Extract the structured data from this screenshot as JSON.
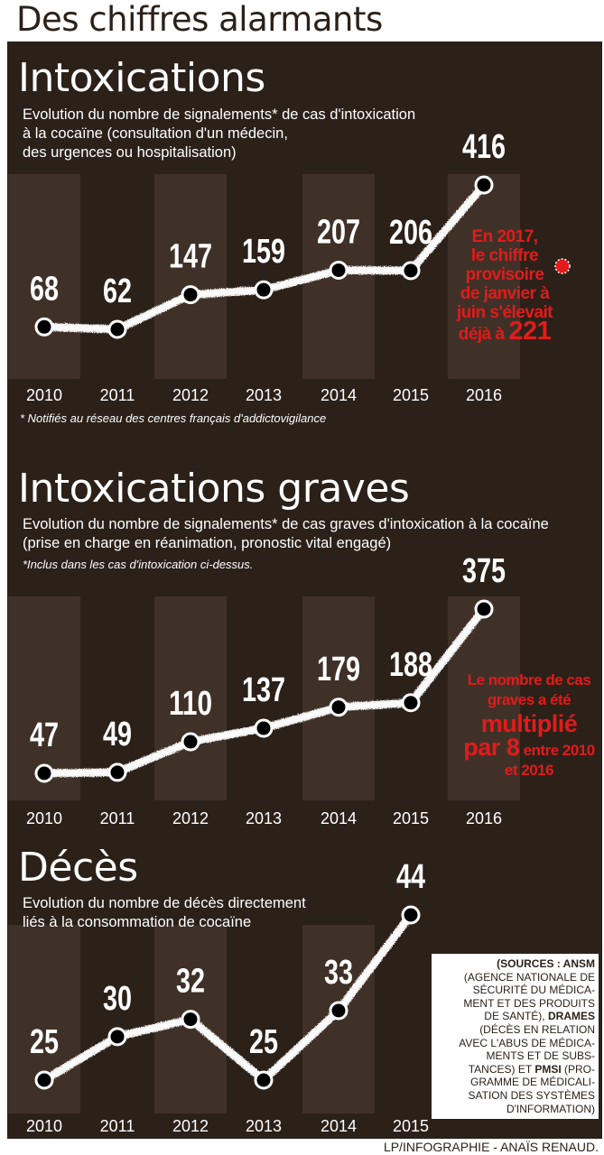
{
  "page": {
    "title": "Des chiffres alarmants",
    "credit": "LP/INFOGRAPHIE - ANAÏS RENAUD.",
    "sources": {
      "lines": [
        "(SOURCES : ANSM",
        "(AGENCE NATIONALE DE",
        "SÉCURITÉ DU MÉDICA-",
        "MENT ET DES PRODUITS",
        "DE SANTÉ), DRAMES",
        "(DÉCÈS EN RELATION",
        "AVEC L'ABUS DE MÉDICA-",
        "MENTS ET DE SUBS-",
        "TANCES) ET PMSI (PRO-",
        "GRAMME DE MÉDICALI-",
        "SATION DES SYSTÈMES",
        "D'INFORMATION)"
      ]
    }
  },
  "colors": {
    "background": "#2b2119",
    "column_band": "#3f3127",
    "line": "#ffffff",
    "accent_red": "#e21b1b",
    "text_dark": "#2b2119"
  },
  "chart_data": [
    {
      "type": "line",
      "title": "Intoxications",
      "subtitle": "Evolution du nombre de signalements* de cas d'intoxication\nà la cocaïne (consultation d'un médecin,\ndes urgences ou hospitalisation)",
      "footnote": "* Notifiés au réseau des centres français d'addictovigilance",
      "categories": [
        "2010",
        "2011",
        "2012",
        "2013",
        "2014",
        "2015",
        "2016"
      ],
      "values": [
        68,
        62,
        147,
        159,
        207,
        206,
        416
      ],
      "data_labels": [
        "68",
        "62",
        "147",
        "159",
        "207",
        "206",
        "416"
      ],
      "annotation": {
        "lines": [
          "En 2017,",
          "le chiffre",
          "provisoire",
          "de janvier à",
          "juin s'élevait",
          "déjà à"
        ],
        "value": "221"
      },
      "grid": false,
      "legend": "none"
    },
    {
      "type": "line",
      "title": "Intoxications graves",
      "subtitle": "Evolution du nombre de signalements* de cas graves d'intoxication à la cocaïne\n(prise en charge en réanimation, pronostic vital engagé)",
      "footnote": "*Inclus dans les cas d'intoxication ci-dessus.",
      "categories": [
        "2010",
        "2011",
        "2012",
        "2013",
        "2014",
        "2015",
        "2016"
      ],
      "values": [
        47,
        49,
        110,
        137,
        179,
        188,
        375
      ],
      "data_labels": [
        "47",
        "49",
        "110",
        "137",
        "179",
        "188",
        "375"
      ],
      "annotation": {
        "line1": "Le nombre de cas",
        "line2": "graves a été",
        "line3": "multiplié",
        "line4a": "par 8",
        "line4b": "entre 2010",
        "line5": "et 2016"
      },
      "grid": false,
      "legend": "none"
    },
    {
      "type": "line",
      "title": "Décès",
      "subtitle": "Evolution du nombre de décès directement\nliés à la consommation de cocaïne",
      "categories": [
        "2010",
        "2011",
        "2012",
        "2013",
        "2014",
        "2015"
      ],
      "values": [
        25,
        30,
        32,
        25,
        33,
        44
      ],
      "data_labels": [
        "25",
        "30",
        "32",
        "25",
        "33",
        "44"
      ],
      "grid": false,
      "legend": "none"
    }
  ]
}
